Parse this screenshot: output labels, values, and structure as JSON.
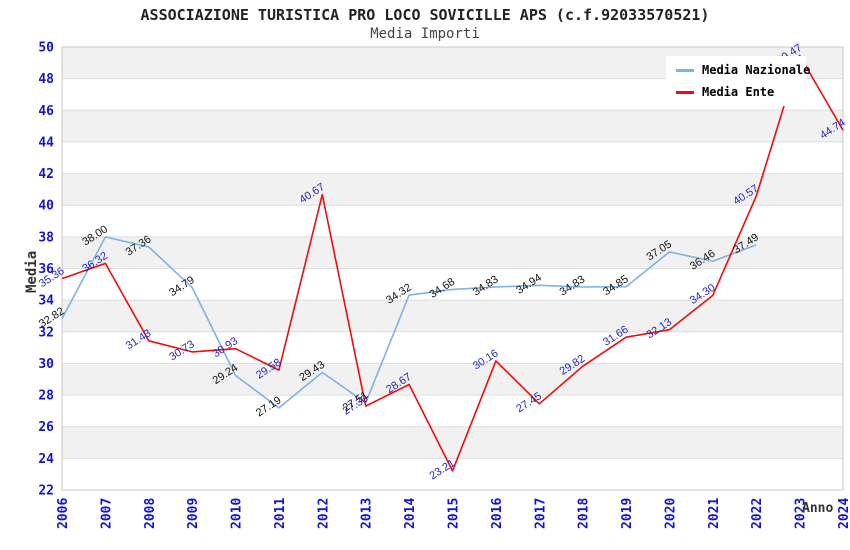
{
  "header": {
    "title": "ASSOCIAZIONE TURISTICA PRO LOCO SOVICILLE APS (c.f.92033570521)",
    "subtitle": "Media Importi"
  },
  "style": {
    "axis_tick_color": "#1414CF",
    "band_color": "#F1F1F1",
    "gridline_color": "#DEDEDE",
    "plot_border_color": "#C8C8C8",
    "title_color": "#222222"
  },
  "chart_data": {
    "type": "line",
    "title": "ASSOCIAZIONE TURISTICA PRO LOCO SOVICILLE APS (c.f.92033570521)",
    "subtitle": "Media Importi",
    "xlabel": "Anno",
    "ylabel": "Media",
    "ylim": [
      22,
      50
    ],
    "yticks": [
      22,
      24,
      26,
      28,
      30,
      32,
      34,
      36,
      38,
      40,
      42,
      44,
      46,
      48,
      50
    ],
    "categories": [
      2006,
      2007,
      2008,
      2009,
      2010,
      2011,
      2012,
      2013,
      2014,
      2015,
      2016,
      2017,
      2018,
      2019,
      2020,
      2021,
      2022,
      2023,
      2024
    ],
    "grid": "horizontal gridlines with alternating gray/white bands every 2 units",
    "legend_position": "top-right",
    "point_label_format": "2-decimals, rotated ~33deg, above-left of each point",
    "series": [
      {
        "name": "Media Nazionale",
        "color": "#7FB2E5",
        "label_color": "#111111",
        "x": [
          2006,
          2007,
          2008,
          2009,
          2010,
          2011,
          2012,
          2013,
          2014,
          2015,
          2016,
          2017,
          2018,
          2019,
          2020,
          2021,
          2022
        ],
        "values": [
          32.82,
          38.0,
          37.36,
          34.79,
          29.24,
          27.19,
          29.43,
          27.51,
          34.32,
          34.68,
          34.83,
          34.94,
          34.83,
          34.85,
          37.05,
          36.46,
          37.49
        ]
      },
      {
        "name": "Media Ente",
        "color": "#EE0D0D",
        "label_color": "#2626BE",
        "x": [
          2006,
          2007,
          2008,
          2009,
          2010,
          2011,
          2012,
          2013,
          2014,
          2015,
          2016,
          2017,
          2018,
          2019,
          2020,
          2021,
          2022,
          2023,
          2024
        ],
        "values": [
          35.36,
          36.32,
          31.43,
          30.73,
          30.93,
          29.58,
          40.67,
          27.3,
          28.67,
          23.21,
          30.16,
          27.45,
          29.82,
          31.66,
          32.13,
          34.3,
          40.57,
          49.47,
          44.74
        ]
      }
    ]
  }
}
